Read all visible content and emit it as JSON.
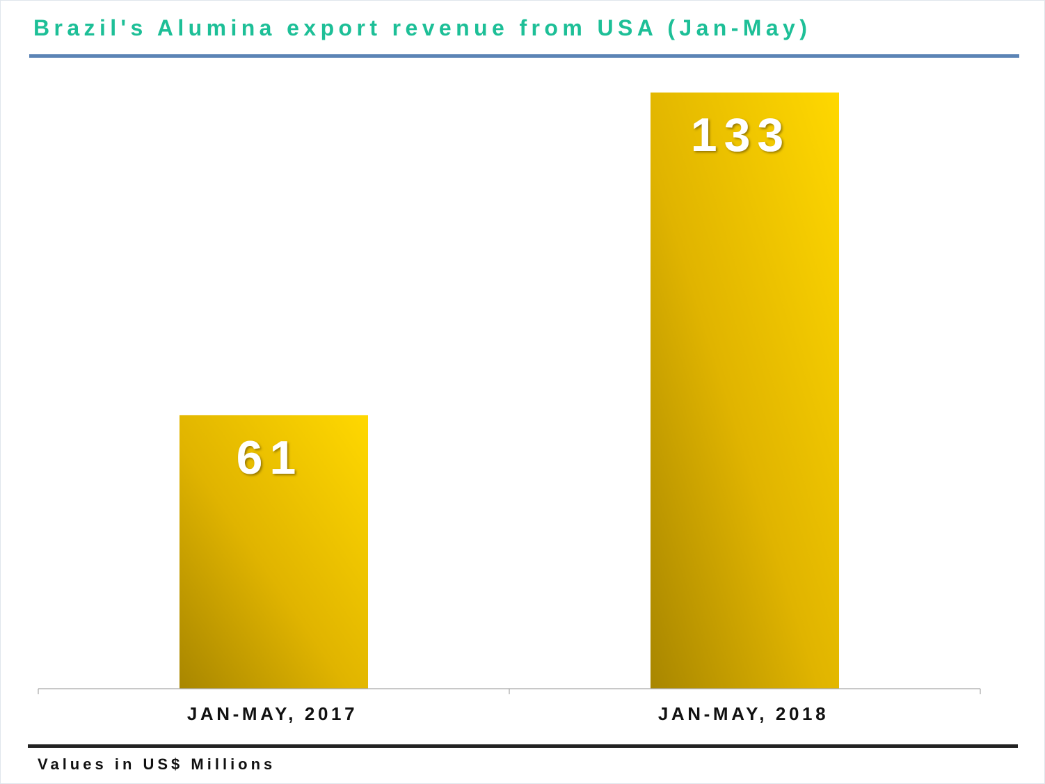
{
  "chart_data": {
    "type": "bar",
    "title": "Brazil's Alumina export revenue from USA (Jan-May)",
    "categories": [
      "JAN-MAY, 2017",
      "JAN-MAY, 2018"
    ],
    "values": [
      61,
      133
    ],
    "data_labels": [
      "61",
      "133"
    ],
    "xlabel": "",
    "ylabel": "",
    "ylim": [
      0,
      133
    ],
    "grid": false,
    "legend": "none",
    "colors": {
      "bar_light": "#ffd800",
      "bar_dark": "#a88600",
      "label": "#ffffff",
      "axis": "#a6a6a6"
    }
  },
  "title_color": "#1dbf97",
  "title_rule_color": "#5b84b5",
  "footer": {
    "note": "Values in US$ Millions"
  }
}
